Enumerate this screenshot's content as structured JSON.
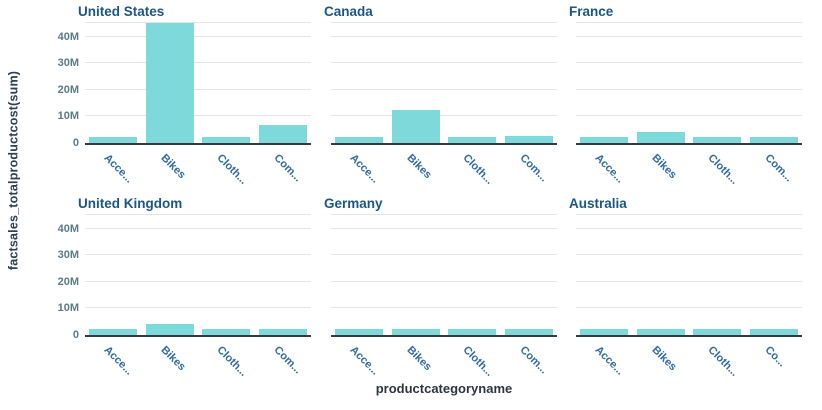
{
  "chart_data": {
    "type": "bar",
    "title": "",
    "xlabel": "productcategoryname",
    "ylabel": "factsales_totalproductcost(sum)",
    "values_unit": "millions",
    "ylim": [
      0,
      45.6
    ],
    "grid": true,
    "legend": "none",
    "y_ticks": [
      {
        "label": "40M",
        "value": 40
      },
      {
        "label": "30M",
        "value": 30
      },
      {
        "label": "20M",
        "value": 20
      },
      {
        "label": "10M",
        "value": 10
      },
      {
        "label": "0",
        "value": 0
      }
    ],
    "panels": [
      {
        "title": "United States",
        "tick_labels": [
          "Acce...",
          "Bikes",
          "Cloth...",
          "Com..."
        ],
        "values": [
          2.1,
          45.4,
          2.1,
          6.7
        ]
      },
      {
        "title": "Canada",
        "tick_labels": [
          "Acce...",
          "Bikes",
          "Cloth...",
          "Com..."
        ],
        "values": [
          2.3,
          12.3,
          2.2,
          2.7
        ]
      },
      {
        "title": "France",
        "tick_labels": [
          "Acce...",
          "Bikes",
          "Cloth...",
          "Com..."
        ],
        "values": [
          2.4,
          4.0,
          2.3,
          2.4
        ]
      },
      {
        "title": "United Kingdom",
        "tick_labels": [
          "Acce...",
          "Bikes",
          "Cloth...",
          "Com..."
        ],
        "values": [
          2.2,
          4.0,
          2.3,
          2.3
        ]
      },
      {
        "title": "Germany",
        "tick_labels": [
          "Acce...",
          "Bikes",
          "Cloth...",
          "Com..."
        ],
        "values": [
          2.3,
          2.4,
          2.3,
          2.4
        ]
      },
      {
        "title": "Australia",
        "tick_labels": [
          "Acce...",
          "Bikes",
          "Cloth...",
          "Co..."
        ],
        "values": [
          2.3,
          2.4,
          2.3,
          2.4
        ]
      }
    ],
    "colors": {
      "bar": "#7ed9db",
      "gridline": "#e4e4e4",
      "axis_line": "#323a44",
      "panel_title": "#1c5687",
      "y_tick_label": "#5b7a8a",
      "x_tick_label": "#2f6ba5",
      "y_axis_label": "#2b4156",
      "x_axis_label": "#2d3640",
      "background": "#ffffff"
    }
  }
}
